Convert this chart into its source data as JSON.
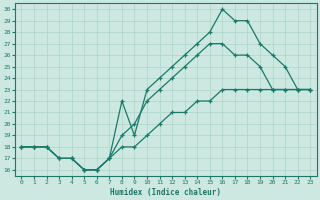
{
  "xlabel": "Humidex (Indice chaleur)",
  "xlim": [
    -0.5,
    23.5
  ],
  "ylim": [
    15.5,
    30.5
  ],
  "xticks": [
    0,
    1,
    2,
    3,
    4,
    5,
    6,
    7,
    8,
    9,
    10,
    11,
    12,
    13,
    14,
    15,
    16,
    17,
    18,
    19,
    20,
    21,
    22,
    23
  ],
  "yticks": [
    16,
    17,
    18,
    19,
    20,
    21,
    22,
    23,
    24,
    25,
    26,
    27,
    28,
    29,
    30
  ],
  "bg_color": "#cce8e0",
  "line_color": "#1a7a6a",
  "grid_color": "#b0d8d0",
  "line1_x": [
    0,
    1,
    2,
    3,
    4,
    5,
    6,
    7,
    8,
    9,
    10,
    11,
    12,
    13,
    14,
    15,
    16,
    17,
    18,
    19,
    20,
    21,
    22,
    23
  ],
  "line1_y": [
    18,
    18,
    18,
    17,
    17,
    16,
    16,
    17,
    18,
    18,
    19,
    20,
    21,
    21,
    22,
    22,
    23,
    23,
    23,
    23,
    23,
    23,
    23,
    23
  ],
  "line2_x": [
    0,
    1,
    2,
    3,
    4,
    5,
    6,
    7,
    8,
    9,
    10,
    11,
    12,
    13,
    14,
    15,
    16,
    17,
    18,
    19,
    20,
    21,
    22,
    23
  ],
  "line2_y": [
    18,
    18,
    18,
    17,
    17,
    16,
    16,
    17,
    19,
    20,
    22,
    23,
    24,
    25,
    26,
    27,
    27,
    26,
    26,
    25,
    23,
    23,
    23,
    23
  ],
  "line3_x": [
    0,
    1,
    2,
    3,
    4,
    5,
    6,
    7,
    8,
    9,
    10,
    11,
    12,
    13,
    14,
    15,
    16,
    17,
    18,
    19,
    20,
    21,
    22,
    23
  ],
  "line3_y": [
    18,
    18,
    18,
    17,
    17,
    16,
    16,
    17,
    22,
    19,
    23,
    24,
    25,
    26,
    27,
    28,
    30,
    29,
    29,
    27,
    26,
    25,
    23,
    23
  ]
}
